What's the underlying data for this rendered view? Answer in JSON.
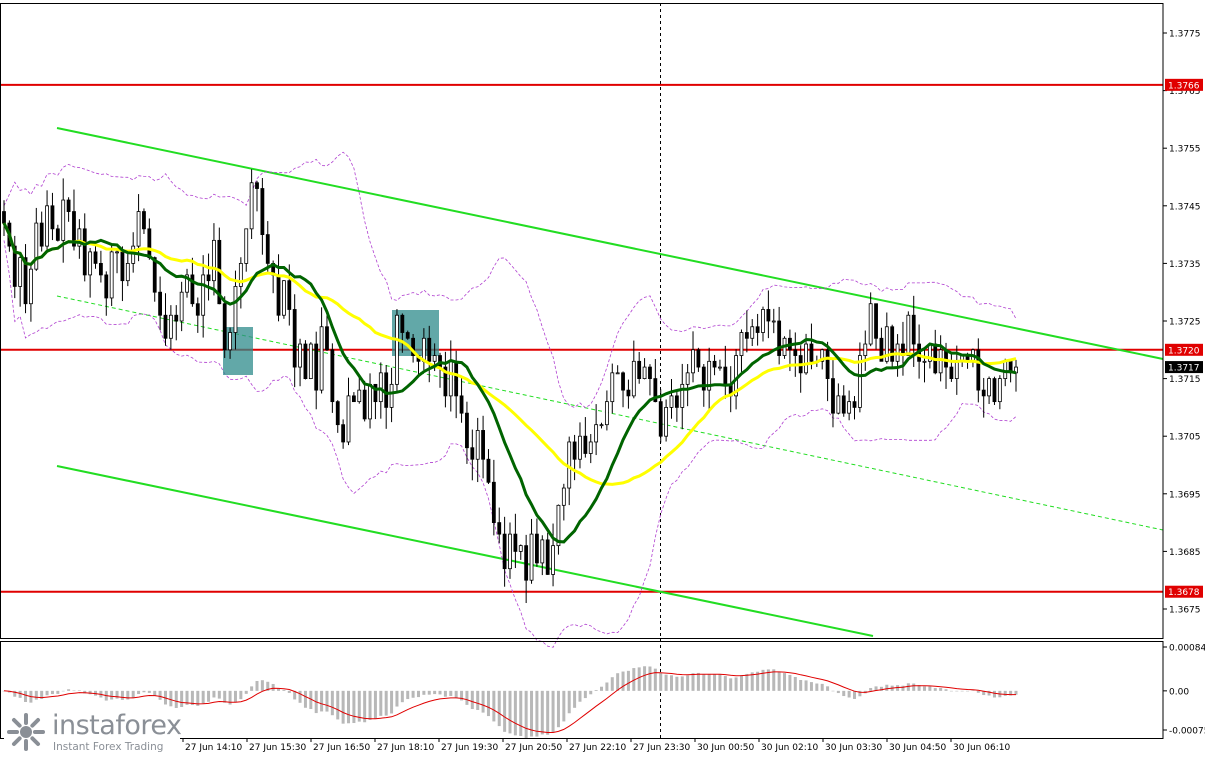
{
  "chart_data": {
    "type": "candlestick",
    "symbol_hint": "",
    "price_axis": {
      "ylim": [
        1.367,
        1.378
      ],
      "ticks": [
        "1.3775",
        "1.3765",
        "1.3755",
        "1.3745",
        "1.3735",
        "1.3725",
        "1.3715",
        "1.3705",
        "1.3695",
        "1.3685",
        "1.3675"
      ]
    },
    "time_axis": {
      "ticks": [
        "27 Jun 14:10",
        "27 Jun 15:30",
        "27 Jun 16:50",
        "27 Jun 18:10",
        "27 Jun 19:30",
        "27 Jun 20:50",
        "27 Jun 22:10",
        "27 Jun 23:30",
        "30 Jun 00:50",
        "30 Jun 02:10",
        "30 Jun 03:30",
        "30 Jun 04:50",
        "30 Jun 06:10"
      ]
    },
    "horizontal_levels": [
      {
        "label": "1.3766",
        "value": 1.3766,
        "color": "#e00000"
      },
      {
        "label": "1.3720",
        "value": 1.372,
        "color": "#e00000"
      },
      {
        "label": "1.3678",
        "value": 1.3678,
        "color": "#e00000"
      }
    ],
    "current_price": {
      "label": "1.3717",
      "value": 1.3717
    },
    "candles_close": [
      1.3742,
      1.3738,
      1.3731,
      1.3736,
      1.3728,
      1.3734,
      1.3742,
      1.3738,
      1.3745,
      1.3741,
      1.3739,
      1.3746,
      1.3744,
      1.3738,
      1.3741,
      1.3733,
      1.3737,
      1.3735,
      1.3733,
      1.3729,
      1.3737,
      1.3737,
      1.3732,
      1.3735,
      1.3738,
      1.3744,
      1.3741,
      1.3736,
      1.373,
      1.3726,
      1.3722,
      1.3726,
      1.3725,
      1.373,
      1.3733,
      1.3728,
      1.3726,
      1.3733,
      1.3732,
      1.3739,
      1.3728,
      1.372,
      1.3723,
      1.3731,
      1.3735,
      1.3741,
      1.3749,
      1.3748,
      1.374,
      1.3735,
      1.3733,
      1.3726,
      1.3732,
      1.3727,
      1.3717,
      1.3721,
      1.3715,
      1.3721,
      1.3713,
      1.3724,
      1.372,
      1.3711,
      1.3707,
      1.3704,
      1.3712,
      1.3711,
      1.3713,
      1.3708,
      1.3714,
      1.3711,
      1.3716,
      1.371,
      1.3714,
      1.3726,
      1.3723,
      1.3722,
      1.3719,
      1.3718,
      1.3722,
      1.3718,
      1.3719,
      1.3717,
      1.3712,
      1.3718,
      1.3712,
      1.3709,
      1.3703,
      1.3701,
      1.3706,
      1.3701,
      1.3697,
      1.369,
      1.3688,
      1.3682,
      1.3688,
      1.3685,
      1.3686,
      1.368,
      1.3688,
      1.3683,
      1.3687,
      1.3681,
      1.3686,
      1.3693,
      1.3696,
      1.3704,
      1.3701,
      1.3705,
      1.3702,
      1.3704,
      1.3707,
      1.3707,
      1.3711,
      1.3716,
      1.3716,
      1.3713,
      1.3712,
      1.3718,
      1.3715,
      1.3717,
      1.3715,
      1.3711,
      1.3705,
      1.371,
      1.3712,
      1.371,
      1.3714,
      1.3716,
      1.372,
      1.3717,
      1.3713,
      1.3718,
      1.3717,
      1.3717,
      1.3714,
      1.3712,
      1.3719,
      1.3723,
      1.3722,
      1.3724,
      1.3723,
      1.3727,
      1.3725,
      1.3725,
      1.3719,
      1.3722,
      1.372,
      1.3719,
      1.3716,
      1.3721,
      1.3718,
      1.3718,
      1.372,
      1.3715,
      1.3709,
      1.3712,
      1.3709,
      1.3711,
      1.371,
      1.3719,
      1.3721,
      1.3728,
      1.3722,
      1.3718,
      1.3724,
      1.3718,
      1.3721,
      1.3719,
      1.3726,
      1.3721,
      1.3718,
      1.3718,
      1.3721,
      1.3716,
      1.372,
      1.3717,
      1.3715,
      1.3718,
      1.3719,
      1.3718,
      1.372,
      1.3713,
      1.3712,
      1.3715,
      1.3711,
      1.3715,
      1.3718,
      1.3716,
      1.3717
    ],
    "macd": {
      "ticks": [
        "0.00084",
        "0.00",
        "-0.00075"
      ],
      "ylim": [
        -0.00075,
        0.00084
      ]
    }
  },
  "brand": {
    "name": "instaforex",
    "tagline": "Instant Forex Trading"
  },
  "colors": {
    "ma_fast": "#006400",
    "ma_slow": "#ffff00",
    "channel": "#22dd22",
    "level": "#e00000",
    "signal_box": "#2e8b8b",
    "candles": "#000000",
    "bands": "#b040d0"
  }
}
